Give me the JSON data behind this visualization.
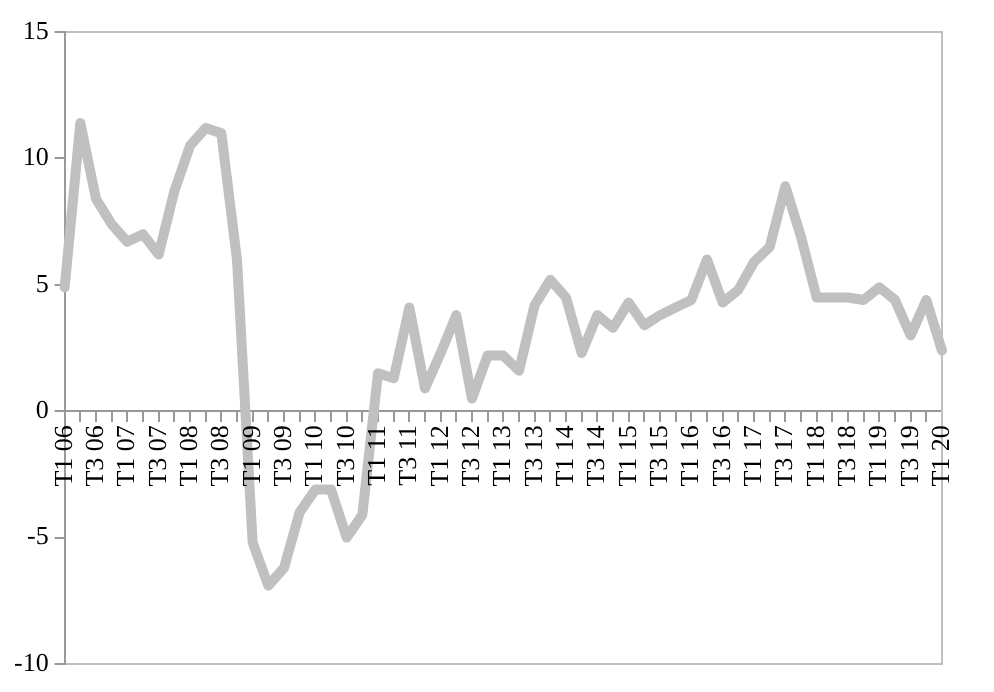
{
  "chart_data": {
    "type": "line",
    "categories": [
      "T1 06",
      null,
      "T3 06",
      null,
      "T1 07",
      null,
      "T3 07",
      null,
      "T1 08",
      null,
      "T3 08",
      null,
      "T1 09",
      null,
      "T3 09",
      null,
      "T1 10",
      null,
      "T3 10",
      null,
      "T1 11",
      null,
      "T3 11",
      null,
      "T1 12",
      null,
      "T3 12",
      null,
      "T1 13",
      null,
      "T3 13",
      null,
      "T1 14",
      null,
      "T3 14",
      null,
      "T1 15",
      null,
      "T3 15",
      null,
      "T1 16",
      null,
      "T3 16",
      null,
      "T1 17",
      null,
      "T3 17",
      null,
      "T1 18",
      null,
      "T3 18",
      null,
      "T1 19",
      null,
      "T3 19",
      null,
      "T1 20"
    ],
    "series": [
      {
        "color": "#c0c0c0",
        "values": [
          4.9,
          11.4,
          8.4,
          7.4,
          6.7,
          7.0,
          6.2,
          8.7,
          10.5,
          11.2,
          11.0,
          6.0,
          -5.2,
          -6.9,
          -6.2,
          -4.0,
          -3.1,
          -3.1,
          -5.0,
          -4.1,
          1.5,
          1.3,
          4.1,
          0.9,
          2.3,
          3.8,
          0.5,
          2.2,
          2.2,
          1.6,
          4.2,
          5.2,
          4.5,
          2.3,
          3.8,
          3.3,
          4.3,
          3.4,
          3.8,
          4.1,
          4.4,
          6.0,
          4.3,
          4.8,
          5.9,
          6.5,
          8.9,
          6.9,
          4.5,
          4.5,
          4.5,
          4.4,
          4.9,
          4.4,
          3.0,
          4.4,
          2.4
        ]
      }
    ],
    "ylim": [
      -10,
      15
    ],
    "yticks": [
      -10,
      -5,
      0,
      5,
      10,
      15
    ],
    "grid": false,
    "legend": false,
    "marker": "none",
    "line_style": "solid"
  }
}
